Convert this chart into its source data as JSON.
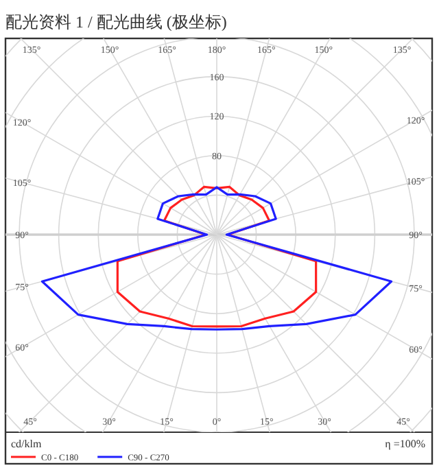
{
  "chart_data": {
    "type": "radar",
    "title": "配光资料 1 / 配光曲线 (极坐标)",
    "categories": [
      "180°",
      "165°",
      "150°",
      "135°",
      "120°",
      "105°",
      "90°",
      "75°",
      "60°",
      "45°",
      "30°",
      "15°",
      "0°",
      "15°",
      "30°",
      "45°",
      "60°",
      "75°",
      "90°",
      "105°",
      "120°",
      "135°",
      "150°",
      "165°"
    ],
    "series": [
      {
        "name": "C0 - C180",
        "color": "#ff2020",
        "values": [
          47,
          50,
          46,
          50,
          54,
          55,
          11,
          104,
          116,
          110,
          98,
          96,
          93,
          96,
          98,
          110,
          116,
          104,
          11,
          55,
          54,
          50,
          46,
          50
        ]
      },
      {
        "name": "C90 - C270",
        "color": "#2020ff",
        "values": [
          48,
          42,
          47,
          55,
          63,
          62,
          10,
          183,
          162,
          128,
          107,
          99,
          96,
          99,
          107,
          128,
          162,
          183,
          10,
          62,
          63,
          55,
          47,
          42
        ]
      }
    ],
    "ylim": [
      0,
      280
    ],
    "yticks": [
      80,
      120,
      160
    ],
    "grid": true,
    "legend": "bottom",
    "annotations": [
      "cd/klm",
      "η =100%"
    ]
  }
}
